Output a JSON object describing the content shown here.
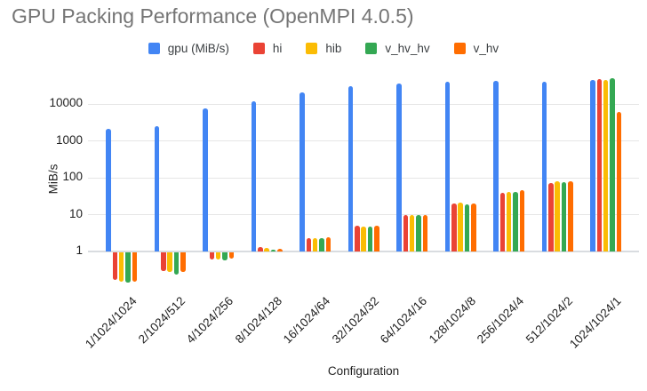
{
  "title": "GPU Packing Performance (OpenMPI 4.0.5)",
  "colors": {
    "background": "#ffffff",
    "title_text": "#757575",
    "axis_text": "#1f1f1f",
    "legend_text": "#3c4043",
    "gridline": "#e6e6e6",
    "baseline": "#d9dce0"
  },
  "chart_data": {
    "type": "bar",
    "title": "GPU Packing Performance (OpenMPI 4.0.5)",
    "xlabel": "Configuration",
    "ylabel": "MiB/s",
    "y_scale": "log",
    "y_ticks": [
      1,
      10,
      100,
      1000,
      10000
    ],
    "y_range_hint": [
      0.1,
      60000
    ],
    "grid": true,
    "legend_position": "top",
    "categories": [
      "1/1024/1024",
      "2/1024/512",
      "4/1024/256",
      "8/1024/128",
      "16/1024/64",
      "32/1024/32",
      "64/1024/16",
      "128/1024/8",
      "256/1024/4",
      "512/1024/2",
      "1024/1024/1"
    ],
    "series": [
      {
        "name": "gpu (MiB/s)",
        "color": "#4285F4",
        "values": [
          2150,
          2500,
          7500,
          11700,
          21000,
          31000,
          35000,
          40000,
          41500,
          40000,
          45500
        ]
      },
      {
        "name": "hi",
        "color": "#EA4335",
        "values": [
          0.18,
          0.31,
          0.66,
          1.3,
          2.3,
          4.9,
          10,
          20,
          39,
          73,
          47500
        ]
      },
      {
        "name": "hib",
        "color": "#FBBC04",
        "values": [
          0.16,
          0.29,
          0.63,
          1.25,
          2.25,
          4.7,
          9.8,
          21,
          42,
          79,
          44000
        ]
      },
      {
        "name": "v_hv_hv",
        "color": "#34A853",
        "values": [
          0.15,
          0.25,
          0.62,
          1.15,
          2.3,
          4.75,
          10,
          19.5,
          41,
          76,
          49000
        ]
      },
      {
        "name": "v_hv",
        "color": "#FF6D01",
        "values": [
          0.16,
          0.3,
          0.67,
          1.2,
          2.4,
          5.1,
          9.9,
          20.5,
          45,
          80,
          6200
        ]
      }
    ]
  }
}
